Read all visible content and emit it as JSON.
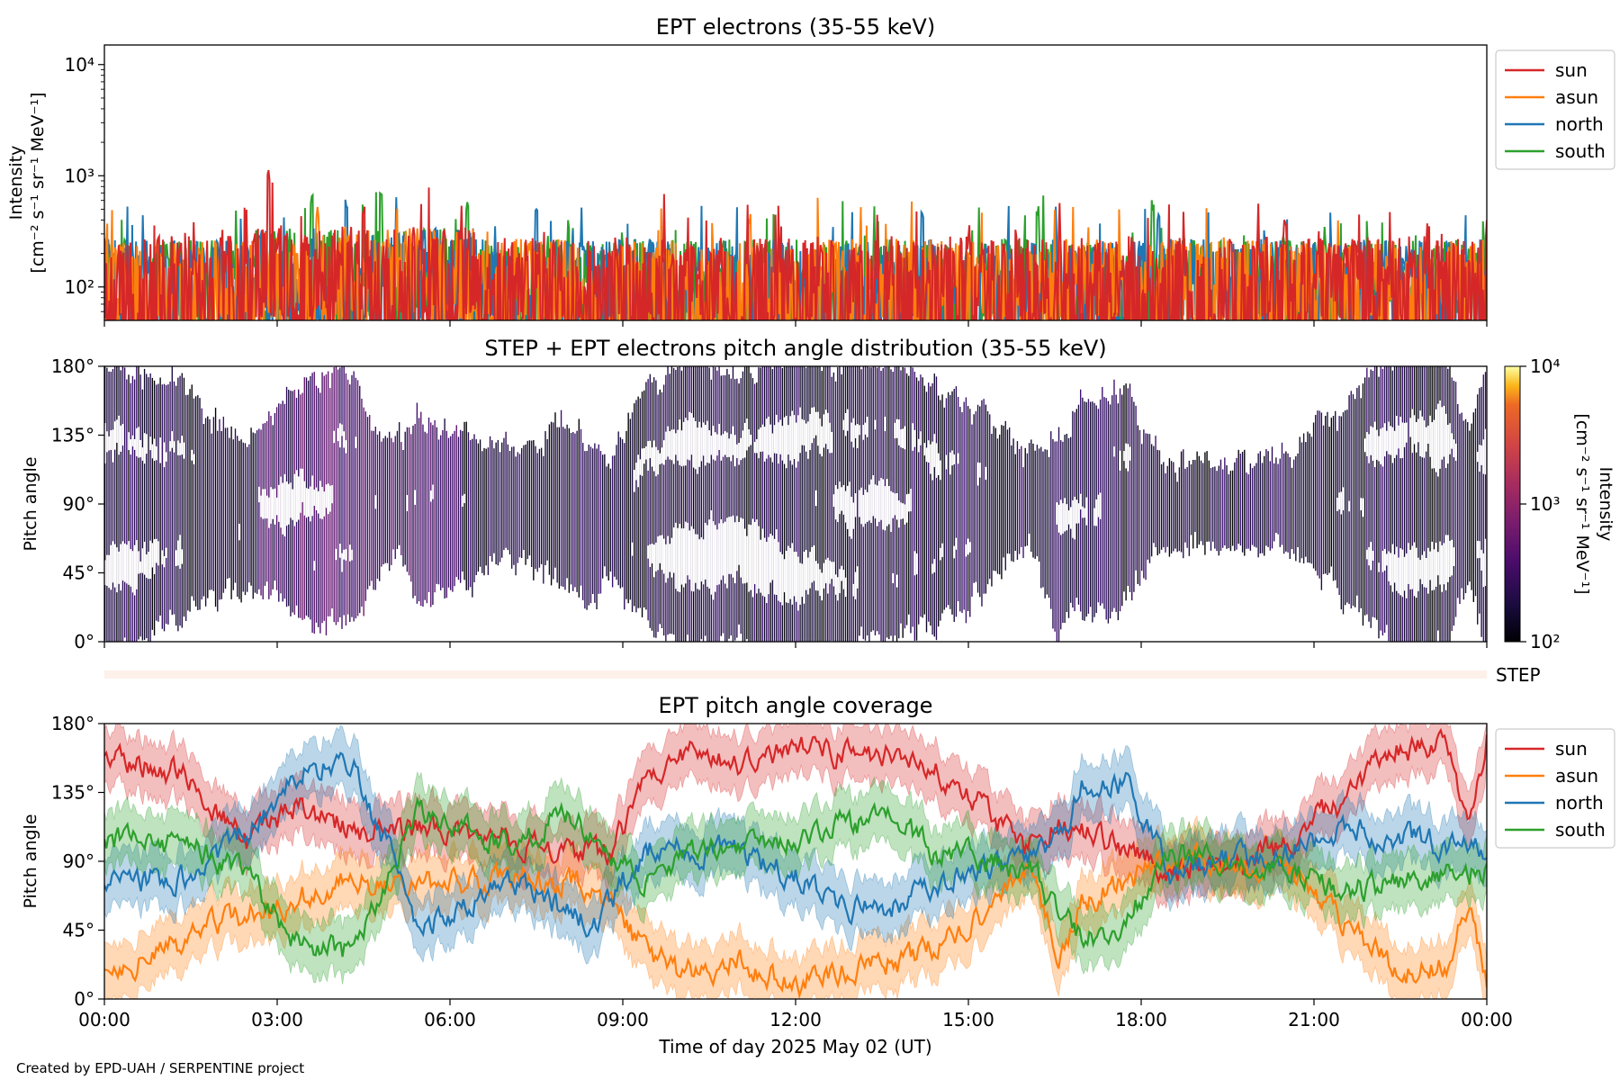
{
  "footer": "Created by EPD-UAH / SERPENTINE project",
  "time_ticks": [
    "00:00",
    "03:00",
    "06:00",
    "09:00",
    "12:00",
    "15:00",
    "18:00",
    "21:00",
    "00:00"
  ],
  "xlabel": "Time of day 2025 May 02 (UT)",
  "colors": {
    "sun": "#d62728",
    "asun": "#ff7f0e",
    "north": "#1f77b4",
    "south": "#2ca02c",
    "step_band": "#fdf1ea"
  },
  "chart_data": [
    {
      "type": "line",
      "title": "EPT electrons (35-55 keV)",
      "ylabel_line1": "Intensity",
      "ylabel_line2": "[cm⁻² s⁻¹ sr⁻¹ MeV⁻¹]",
      "yscale": "log",
      "ylim": [
        50,
        15000
      ],
      "yticks": [
        {
          "value": 100,
          "label": "10²"
        },
        {
          "value": 1000,
          "label": "10³"
        },
        {
          "value": 10000,
          "label": "10⁴"
        }
      ],
      "xlim_hours": [
        0,
        24
      ],
      "legend": [
        "sun",
        "asun",
        "north",
        "south"
      ],
      "legend_position": "right-top",
      "series": [
        {
          "name": "south",
          "baseline": 150,
          "peaks": [
            {
              "t": 3.6,
              "v": 650
            },
            {
              "t": 4.8,
              "v": 760
            },
            {
              "t": 6.3,
              "v": 560
            },
            {
              "t": 18.2,
              "v": 580
            },
            {
              "t": 16.2,
              "v": 520
            }
          ]
        },
        {
          "name": "north",
          "baseline": 150,
          "peaks": [
            {
              "t": 4.2,
              "v": 620
            },
            {
              "t": 7.5,
              "v": 560
            },
            {
              "t": 14.2,
              "v": 520
            },
            {
              "t": 18.3,
              "v": 450
            }
          ]
        },
        {
          "name": "asun",
          "baseline": 150,
          "peaks": [
            {
              "t": 3.7,
              "v": 500
            },
            {
              "t": 11.2,
              "v": 450
            }
          ]
        },
        {
          "name": "sun",
          "baseline": 160,
          "peaks": [
            {
              "t": 2.85,
              "v": 1080
            },
            {
              "t": 4.5,
              "v": 520
            },
            {
              "t": 20.5,
              "v": 420
            }
          ]
        }
      ]
    },
    {
      "type": "heatmap",
      "title": "STEP + EPT electrons pitch angle distribution (35-55 keV)",
      "ylabel": "Pitch angle",
      "ylim": [
        0,
        180
      ],
      "yticks": [
        0,
        45,
        90,
        135,
        180
      ],
      "xlim_hours": [
        0,
        24
      ],
      "colorbar_label_line1": "Intensity",
      "colorbar_label_line2": "[cm⁻² s⁻¹ sr⁻¹ MeV⁻¹]",
      "colorbar_ticks": [
        {
          "value": 100,
          "label": "10²"
        },
        {
          "value": 1000,
          "label": "10³"
        },
        {
          "value": 10000,
          "label": "10⁴"
        }
      ],
      "colorbar_range": [
        100,
        10000
      ],
      "colormap": "inferno"
    },
    {
      "type": "band",
      "label": "STEP",
      "xlim_hours": [
        0,
        24
      ]
    },
    {
      "type": "line",
      "title": "EPT pitch angle coverage",
      "ylabel": "Pitch angle",
      "ylim": [
        0,
        180
      ],
      "yticks": [
        0,
        45,
        90,
        135,
        180
      ],
      "xlim_hours": [
        0,
        24
      ],
      "legend": [
        "sun",
        "asun",
        "north",
        "south"
      ],
      "legend_position": "right-top",
      "spread_deg": 18,
      "series": [
        {
          "name": "sun",
          "t": [
            0,
            1.5,
            2.5,
            3.3,
            4.5,
            6,
            7.5,
            8.8,
            9.3,
            10,
            11,
            12,
            13,
            14,
            15,
            16,
            16.5,
            17,
            18.5,
            19.5,
            20.5,
            21.5,
            22.5,
            23.3,
            23.7,
            24
          ],
          "v": [
            160,
            145,
            100,
            125,
            110,
            110,
            100,
            95,
            135,
            160,
            155,
            165,
            160,
            158,
            135,
            95,
            115,
            110,
            85,
            88,
            100,
            130,
            165,
            165,
            110,
            170
          ]
        },
        {
          "name": "asun",
          "t": [
            0,
            1,
            2,
            3,
            4,
            5.5,
            7,
            8.5,
            9.2,
            10,
            11,
            12,
            13,
            14,
            15,
            16,
            16.6,
            17,
            18.5,
            19.5,
            20.5,
            21.5,
            22.5,
            23.3,
            23.7,
            24
          ],
          "v": [
            20,
            30,
            50,
            60,
            75,
            75,
            80,
            75,
            40,
            15,
            25,
            10,
            20,
            25,
            45,
            85,
            30,
            65,
            90,
            92,
            85,
            50,
            15,
            20,
            65,
            10
          ]
        },
        {
          "name": "north",
          "t": [
            0,
            1.5,
            2.5,
            3.5,
            4.3,
            5.5,
            7,
            8.5,
            9.5,
            11,
            12,
            13,
            14,
            15,
            16,
            16.5,
            17,
            17.8,
            18.5,
            19.5,
            20.5,
            21.5,
            22.5,
            23.3,
            24
          ],
          "v": [
            75,
            80,
            110,
            150,
            155,
            45,
            75,
            50,
            100,
            95,
            80,
            60,
            65,
            85,
            90,
            100,
            140,
            140,
            85,
            90,
            95,
            110,
            105,
            100,
            95
          ]
        },
        {
          "name": "south",
          "t": [
            0,
            1.5,
            2.5,
            3.3,
            4.3,
            5.5,
            7,
            8,
            9.3,
            10.5,
            12,
            13.5,
            14.5,
            15.5,
            16.2,
            16.6,
            17.5,
            18.5,
            19.5,
            20.5,
            21.5,
            22.5,
            23.3,
            24
          ],
          "v": [
            105,
            100,
            80,
            40,
            30,
            125,
            100,
            120,
            80,
            100,
            105,
            120,
            95,
            90,
            80,
            50,
            35,
            95,
            90,
            85,
            70,
            75,
            80,
            85
          ]
        }
      ]
    }
  ]
}
